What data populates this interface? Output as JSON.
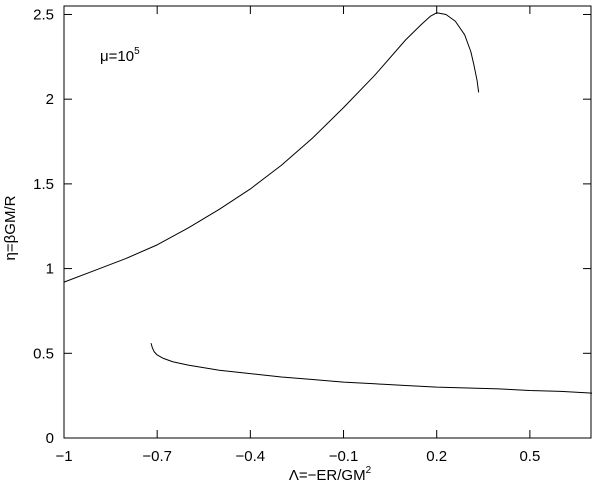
{
  "chart_data": {
    "type": "line",
    "title": "",
    "annotation": {
      "base": "μ=10",
      "exponent": "5"
    },
    "xlabel": {
      "base": "Λ=−ER/GM",
      "exponent": "2"
    },
    "ylabel": "η=βGM/R",
    "xlim": [
      -1.0,
      0.7
    ],
    "ylim": [
      0,
      2.55
    ],
    "xticks": [
      -1,
      -0.7,
      -0.4,
      -0.1,
      0.2,
      0.5
    ],
    "xtick_labels": [
      "−1",
      "−0.7",
      "−0.4",
      "−0.1",
      "0.2",
      "0.5"
    ],
    "yticks": [
      0,
      0.5,
      1,
      1.5,
      2,
      2.5
    ],
    "ytick_labels": [
      "0",
      "0.5",
      "1",
      "1.5",
      "2",
      "2.5"
    ],
    "grid": false,
    "legend": "none",
    "series": [
      {
        "color": "#000000",
        "x": [
          -1.0,
          -0.9,
          -0.8,
          -0.7,
          -0.6,
          -0.5,
          -0.4,
          -0.3,
          -0.2,
          -0.1,
          0.0,
          0.1,
          0.15,
          0.18,
          0.2,
          0.23,
          0.26,
          0.29,
          0.31,
          0.32,
          0.33,
          0.335
        ],
        "y": [
          0.92,
          0.99,
          1.06,
          1.14,
          1.24,
          1.35,
          1.47,
          1.61,
          1.77,
          1.95,
          2.14,
          2.35,
          2.44,
          2.49,
          2.51,
          2.5,
          2.46,
          2.38,
          2.28,
          2.2,
          2.11,
          2.04
        ]
      },
      {
        "color": "#000000",
        "x": [
          -0.72,
          -0.715,
          -0.71,
          -0.7,
          -0.68,
          -0.65,
          -0.6,
          -0.5,
          -0.4,
          -0.3,
          -0.2,
          -0.1,
          0.0,
          0.1,
          0.2,
          0.3,
          0.4,
          0.5,
          0.6,
          0.7
        ],
        "y": [
          0.56,
          0.53,
          0.51,
          0.49,
          0.47,
          0.45,
          0.43,
          0.4,
          0.38,
          0.36,
          0.345,
          0.33,
          0.32,
          0.31,
          0.3,
          0.295,
          0.29,
          0.28,
          0.275,
          0.265
        ]
      }
    ]
  }
}
